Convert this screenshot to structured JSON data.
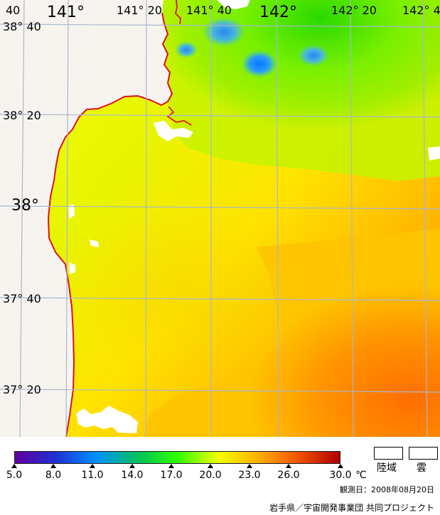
{
  "map": {
    "coordinates": {
      "top_labels": [
        "40",
        "141°",
        "141° 20",
        "141° 40",
        "142°",
        "142° 20",
        "142° 4"
      ],
      "left_labels": [
        "38° 40",
        "38° 20",
        "38°",
        "37° 40",
        "37° 20"
      ]
    },
    "colors": {
      "coastline": "#e01020",
      "grid": "#a8b7ce",
      "land": "#f7f4f0",
      "cloud": "#ffffff"
    },
    "temperature_scale": {
      "min": 5.0,
      "max": 30.0,
      "unit": "℃",
      "gradient_stops": [
        "#6000a0",
        "#2030d0",
        "#0090ff",
        "#00c060",
        "#30ff00",
        "#f0ff00",
        "#ffb000",
        "#f05000",
        "#b00000"
      ]
    }
  },
  "legend": {
    "ticks": [
      "5.0",
      "8.0",
      "11.0",
      "14.0",
      "17.0",
      "20.0",
      "23.0",
      "26.0",
      "30.0"
    ],
    "unit": "℃",
    "land_label": "陸域",
    "cloud_label": "雲"
  },
  "footer": {
    "observation_date": "観測日：2008年08月20日",
    "credit": "岩手県／宇宙開発事業団 共同プロジェクト"
  }
}
